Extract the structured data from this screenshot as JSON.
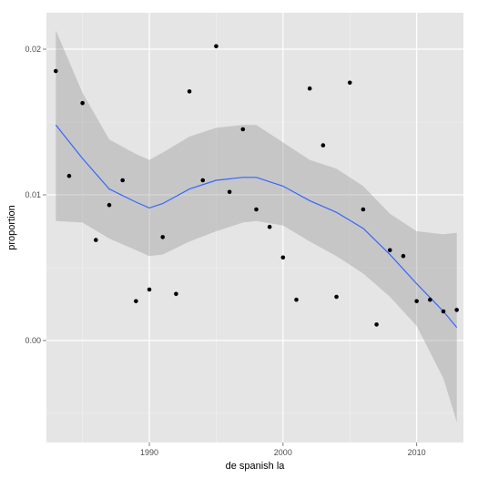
{
  "chart_data": {
    "type": "scatter",
    "title": "",
    "xlabel": "de spanish la",
    "ylabel": "proportion",
    "xlim": [
      1982.3,
      2013.5
    ],
    "ylim": [
      -0.007,
      0.0225
    ],
    "x_ticks": [
      1990,
      2000,
      2010
    ],
    "x_tick_labels": [
      "1990",
      "2000",
      "2010"
    ],
    "y_ticks": [
      0.0,
      0.01,
      0.02
    ],
    "y_tick_labels": [
      "0.00",
      "0.01",
      "0.02"
    ],
    "grid": true,
    "legend": "none",
    "colors": {
      "panel_bg": "#e5e5e5",
      "grid_major": "#ffffff",
      "grid_minor": "#f2f2f2",
      "points": "#000000",
      "smooth_line": "#3366ff",
      "ribbon": "#999999"
    },
    "points": [
      {
        "x": 1983,
        "y": 0.0185
      },
      {
        "x": 1984,
        "y": 0.0113
      },
      {
        "x": 1985,
        "y": 0.0163
      },
      {
        "x": 1986,
        "y": 0.0069
      },
      {
        "x": 1987,
        "y": 0.0093
      },
      {
        "x": 1988,
        "y": 0.011
      },
      {
        "x": 1989,
        "y": 0.0027
      },
      {
        "x": 1990,
        "y": 0.0035
      },
      {
        "x": 1991,
        "y": 0.0071
      },
      {
        "x": 1992,
        "y": 0.0032
      },
      {
        "x": 1993,
        "y": 0.0171
      },
      {
        "x": 1994,
        "y": 0.011
      },
      {
        "x": 1995,
        "y": 0.0202
      },
      {
        "x": 1996,
        "y": 0.0102
      },
      {
        "x": 1997,
        "y": 0.0145
      },
      {
        "x": 1998,
        "y": 0.009
      },
      {
        "x": 1999,
        "y": 0.0078
      },
      {
        "x": 2000,
        "y": 0.0057
      },
      {
        "x": 2001,
        "y": 0.0028
      },
      {
        "x": 2002,
        "y": 0.0173
      },
      {
        "x": 2003,
        "y": 0.0134
      },
      {
        "x": 2004,
        "y": 0.003
      },
      {
        "x": 2005,
        "y": 0.0177
      },
      {
        "x": 2006,
        "y": 0.009
      },
      {
        "x": 2007,
        "y": 0.0011
      },
      {
        "x": 2008,
        "y": 0.0062
      },
      {
        "x": 2009,
        "y": 0.0058
      },
      {
        "x": 2010,
        "y": 0.0027
      },
      {
        "x": 2011,
        "y": 0.0028
      },
      {
        "x": 2012,
        "y": 0.002
      },
      {
        "x": 2013,
        "y": 0.0021
      }
    ],
    "smooth": {
      "x": [
        1983,
        1985,
        1987,
        1989,
        1990,
        1991,
        1993,
        1995,
        1997,
        1998,
        2000,
        2002,
        2004,
        2006,
        2008,
        2010,
        2012,
        2013
      ],
      "y": [
        0.0148,
        0.0125,
        0.0104,
        0.0095,
        0.0091,
        0.0094,
        0.0104,
        0.011,
        0.0112,
        0.0112,
        0.0106,
        0.0096,
        0.0088,
        0.0077,
        0.0059,
        0.0039,
        0.002,
        0.0009
      ],
      "lower": [
        0.0082,
        0.0081,
        0.007,
        0.0062,
        0.0058,
        0.0059,
        0.0068,
        0.0075,
        0.0081,
        0.0082,
        0.0079,
        0.0068,
        0.0058,
        0.0046,
        0.003,
        0.001,
        -0.0026,
        -0.0056
      ],
      "upper": [
        0.0213,
        0.017,
        0.0138,
        0.0128,
        0.0124,
        0.0129,
        0.014,
        0.0146,
        0.0148,
        0.0148,
        0.0136,
        0.0124,
        0.0118,
        0.0106,
        0.0087,
        0.0075,
        0.0073,
        0.0074
      ]
    }
  }
}
